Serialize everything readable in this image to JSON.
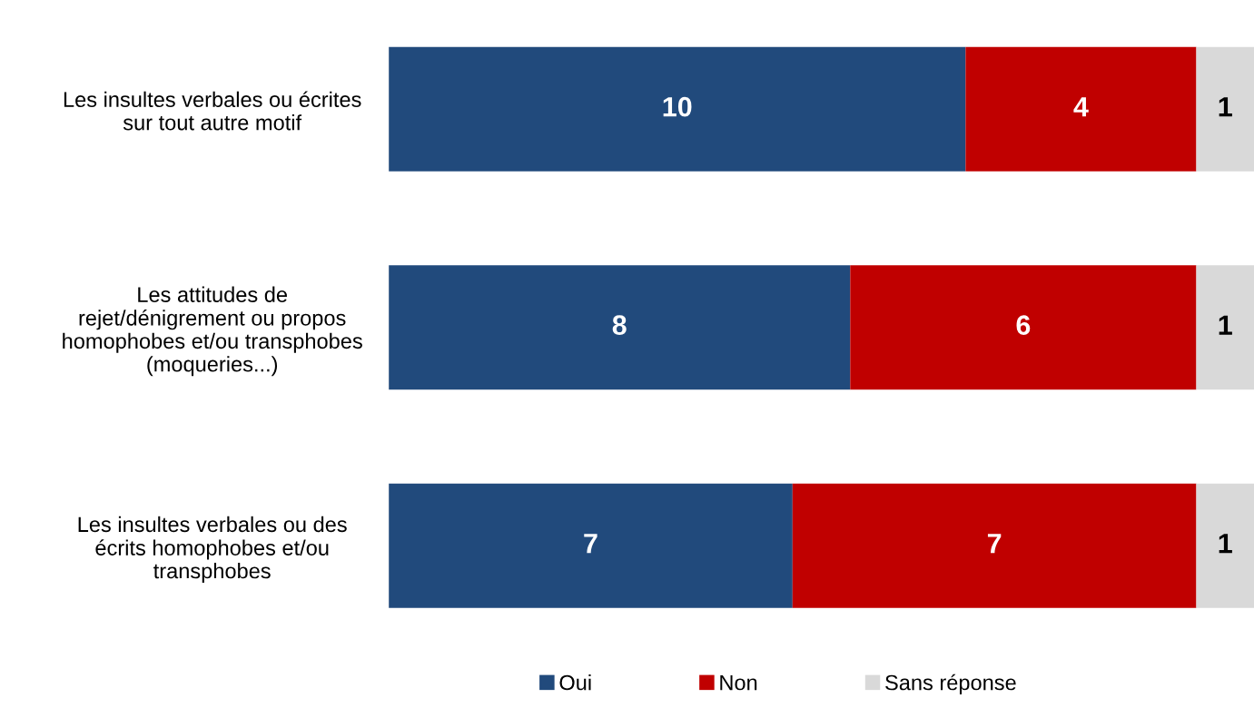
{
  "chart_data": {
    "type": "bar",
    "orientation": "horizontal",
    "stacked": true,
    "categories": [
      "Les insultes verbales ou écrites\nsur tout autre motif",
      "Les attitudes de\nrejet/dénigrement ou propos\nhomophobes et/ou transphobes\n(moqueries...)",
      "Les insultes verbales ou des\nécrits homophobes et/ou\ntransphobes"
    ],
    "series": [
      {
        "name": "Oui",
        "color": "#214a7c",
        "values": [
          10,
          8,
          7
        ]
      },
      {
        "name": "Non",
        "color": "#c00000",
        "values": [
          4,
          6,
          7
        ]
      },
      {
        "name": "Sans réponse",
        "color": "#d9d9d9",
        "values": [
          1,
          1,
          1
        ]
      }
    ],
    "data_labels": true,
    "legend": "bottom",
    "grid": false,
    "tick_labels": "y"
  }
}
